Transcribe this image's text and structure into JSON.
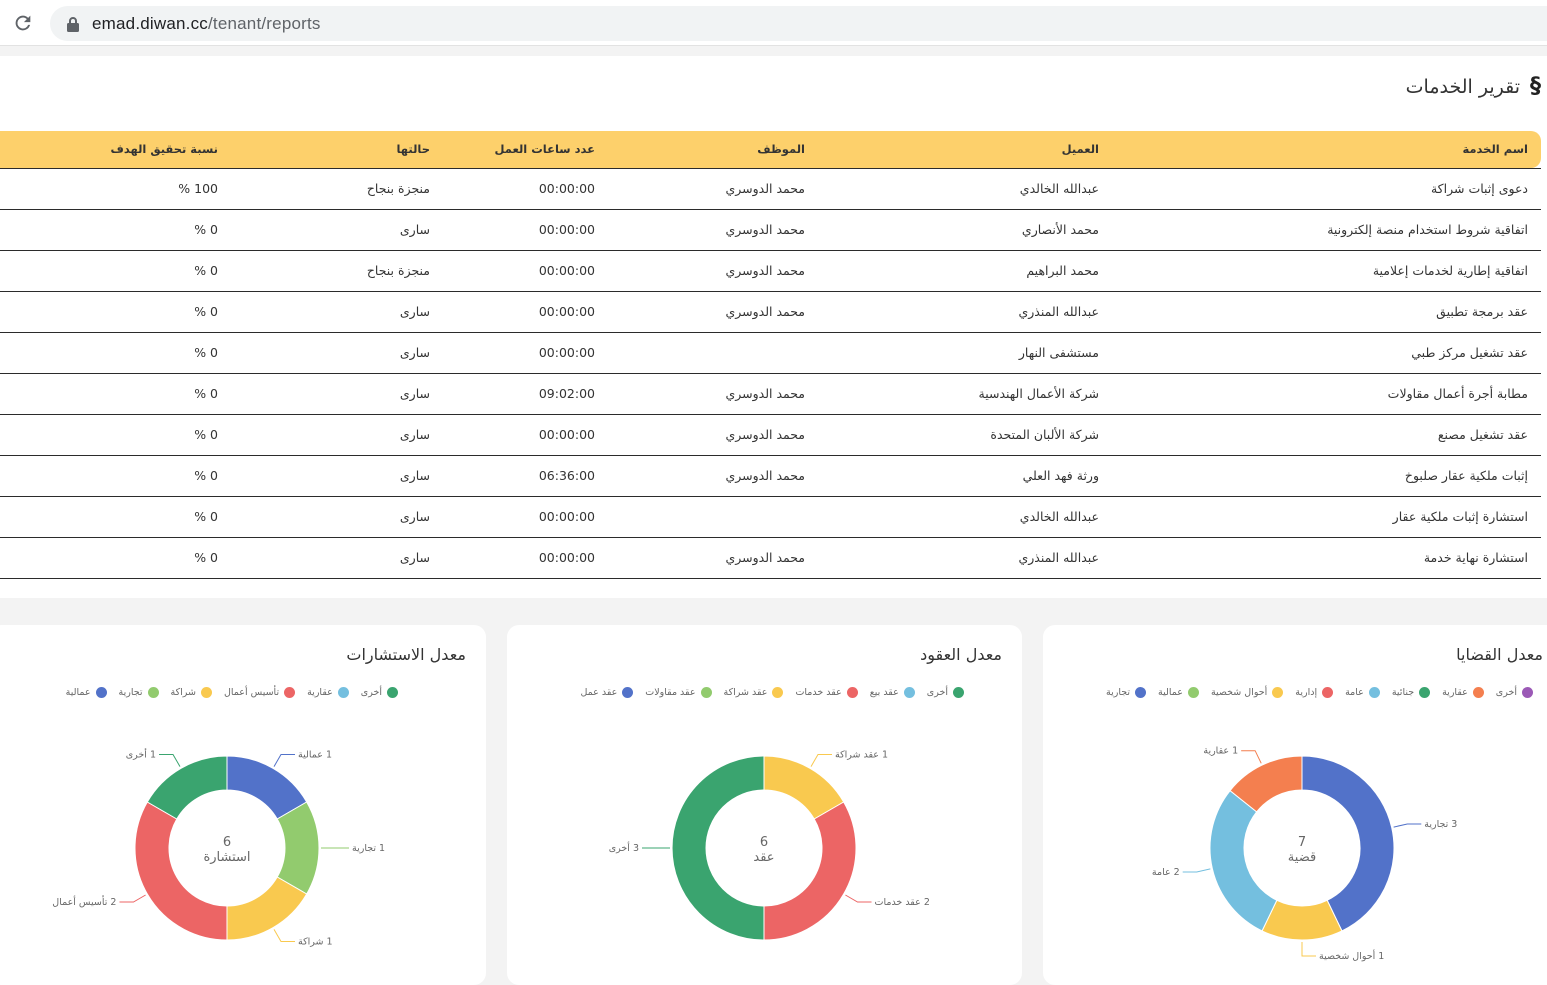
{
  "browser": {
    "url_host": "emad.diwan.cc",
    "url_path": "/tenant/reports"
  },
  "report": {
    "section_mark": "§",
    "title": "تقرير الخدمات",
    "columns": [
      "اسم الخدمة",
      "العميل",
      "الموظف",
      "عدد ساعات العمل",
      "حالتها",
      "نسبة تحقيق الهدف"
    ],
    "rows": [
      [
        "دعوى إثبات شراكة",
        "عبدالله الخالدي",
        "محمد الدوسري",
        "00:00:00",
        "منجزة بنجاح",
        "100 %"
      ],
      [
        "اتفاقية شروط استخدام منصة إلكترونية",
        "محمد الأنصاري",
        "محمد الدوسري",
        "00:00:00",
        "سارى",
        "0 %"
      ],
      [
        "اتفاقية إطارية لخدمات إعلامية",
        "محمد البراهيم",
        "محمد الدوسري",
        "00:00:00",
        "منجزة بنجاح",
        "0 %"
      ],
      [
        "عقد برمجة تطبيق",
        "عبدالله المنذري",
        "محمد الدوسري",
        "00:00:00",
        "سارى",
        "0 %"
      ],
      [
        "عقد تشغيل مركز طبي",
        "مستشفى النهار",
        "",
        "00:00:00",
        "سارى",
        "0 %"
      ],
      [
        "مطابة أجرة أعمال مقاولات",
        "شركة الأعمال الهندسية",
        "محمد الدوسري",
        "09:02:00",
        "سارى",
        "0 %"
      ],
      [
        "عقد تشغيل مصنع",
        "شركة الألبان المتحدة",
        "محمد الدوسري",
        "00:00:00",
        "سارى",
        "0 %"
      ],
      [
        "إثبات ملكية عقار صلبوخ",
        "ورثة فهد العلي",
        "محمد الدوسري",
        "06:36:00",
        "سارى",
        "0 %"
      ],
      [
        "استشارة إثبات ملكية عقار",
        "عبدالله الخالدي",
        "",
        "00:00:00",
        "سارى",
        "0 %"
      ],
      [
        "استشارة نهاية خدمة",
        "عبدالله المنذري",
        "محمد الدوسري",
        "00:00:00",
        "سارى",
        "0 %"
      ]
    ]
  },
  "colors": {
    "purple": "#9b59b6",
    "orange": "#f47f4f",
    "green": "#3aa46f",
    "lightblue": "#74bfdf",
    "red": "#ec6565",
    "yellow": "#f9c94f",
    "lightgreen": "#92cb6e",
    "blue": "#5272c9"
  },
  "chart_data": [
    {
      "type": "pie",
      "title": "معدل القضايا",
      "legend": [
        {
          "label": "أخرى",
          "color": "#9b59b6"
        },
        {
          "label": "عقارية",
          "color": "#f47f4f"
        },
        {
          "label": "جنائية",
          "color": "#3aa46f"
        },
        {
          "label": "عامة",
          "color": "#74bfdf"
        },
        {
          "label": "إدارية",
          "color": "#ec6565"
        },
        {
          "label": "أحوال شخصية",
          "color": "#f9c94f"
        },
        {
          "label": "عمالية",
          "color": "#92cb6e"
        },
        {
          "label": "تجارية",
          "color": "#5272c9"
        }
      ],
      "slices": [
        {
          "label": "تجارية",
          "value": 3,
          "color": "#5272c9"
        },
        {
          "label": "أحوال شخصية",
          "value": 1,
          "color": "#f9c94f"
        },
        {
          "label": "عامة",
          "value": 2,
          "color": "#74bfdf"
        },
        {
          "label": "عقارية",
          "value": 1,
          "color": "#f47f4f"
        }
      ],
      "center_value": "7",
      "center_label": "قضية"
    },
    {
      "type": "pie",
      "title": "معدل العقود",
      "legend": [
        {
          "label": "أخرى",
          "color": "#3aa46f"
        },
        {
          "label": "عقد بيع",
          "color": "#74bfdf"
        },
        {
          "label": "عقد خدمات",
          "color": "#ec6565"
        },
        {
          "label": "عقد شراكة",
          "color": "#f9c94f"
        },
        {
          "label": "عقد مقاولات",
          "color": "#92cb6e"
        },
        {
          "label": "عقد عمل",
          "color": "#5272c9"
        }
      ],
      "slices": [
        {
          "label": "عقد شراكة",
          "value": 1,
          "color": "#f9c94f"
        },
        {
          "label": "عقد خدمات",
          "value": 2,
          "color": "#ec6565"
        },
        {
          "label": "أخرى",
          "value": 3,
          "color": "#3aa46f"
        }
      ],
      "center_value": "6",
      "center_label": "عقد"
    },
    {
      "type": "pie",
      "title": "معدل الاستشارات",
      "legend": [
        {
          "label": "أخرى",
          "color": "#3aa46f"
        },
        {
          "label": "عقارية",
          "color": "#74bfdf"
        },
        {
          "label": "تأسيس أعمال",
          "color": "#ec6565"
        },
        {
          "label": "شراكة",
          "color": "#f9c94f"
        },
        {
          "label": "تجارية",
          "color": "#92cb6e"
        },
        {
          "label": "عمالية",
          "color": "#5272c9"
        }
      ],
      "slices": [
        {
          "label": "عمالية",
          "value": 1,
          "color": "#5272c9"
        },
        {
          "label": "تجارية",
          "value": 1,
          "color": "#92cb6e"
        },
        {
          "label": "شراكة",
          "value": 1,
          "color": "#f9c94f"
        },
        {
          "label": "تأسيس أعمال",
          "value": 2,
          "color": "#ec6565"
        },
        {
          "label": "أخرى",
          "value": 1,
          "color": "#3aa46f"
        }
      ],
      "center_value": "6",
      "center_label": "استشارة"
    }
  ]
}
